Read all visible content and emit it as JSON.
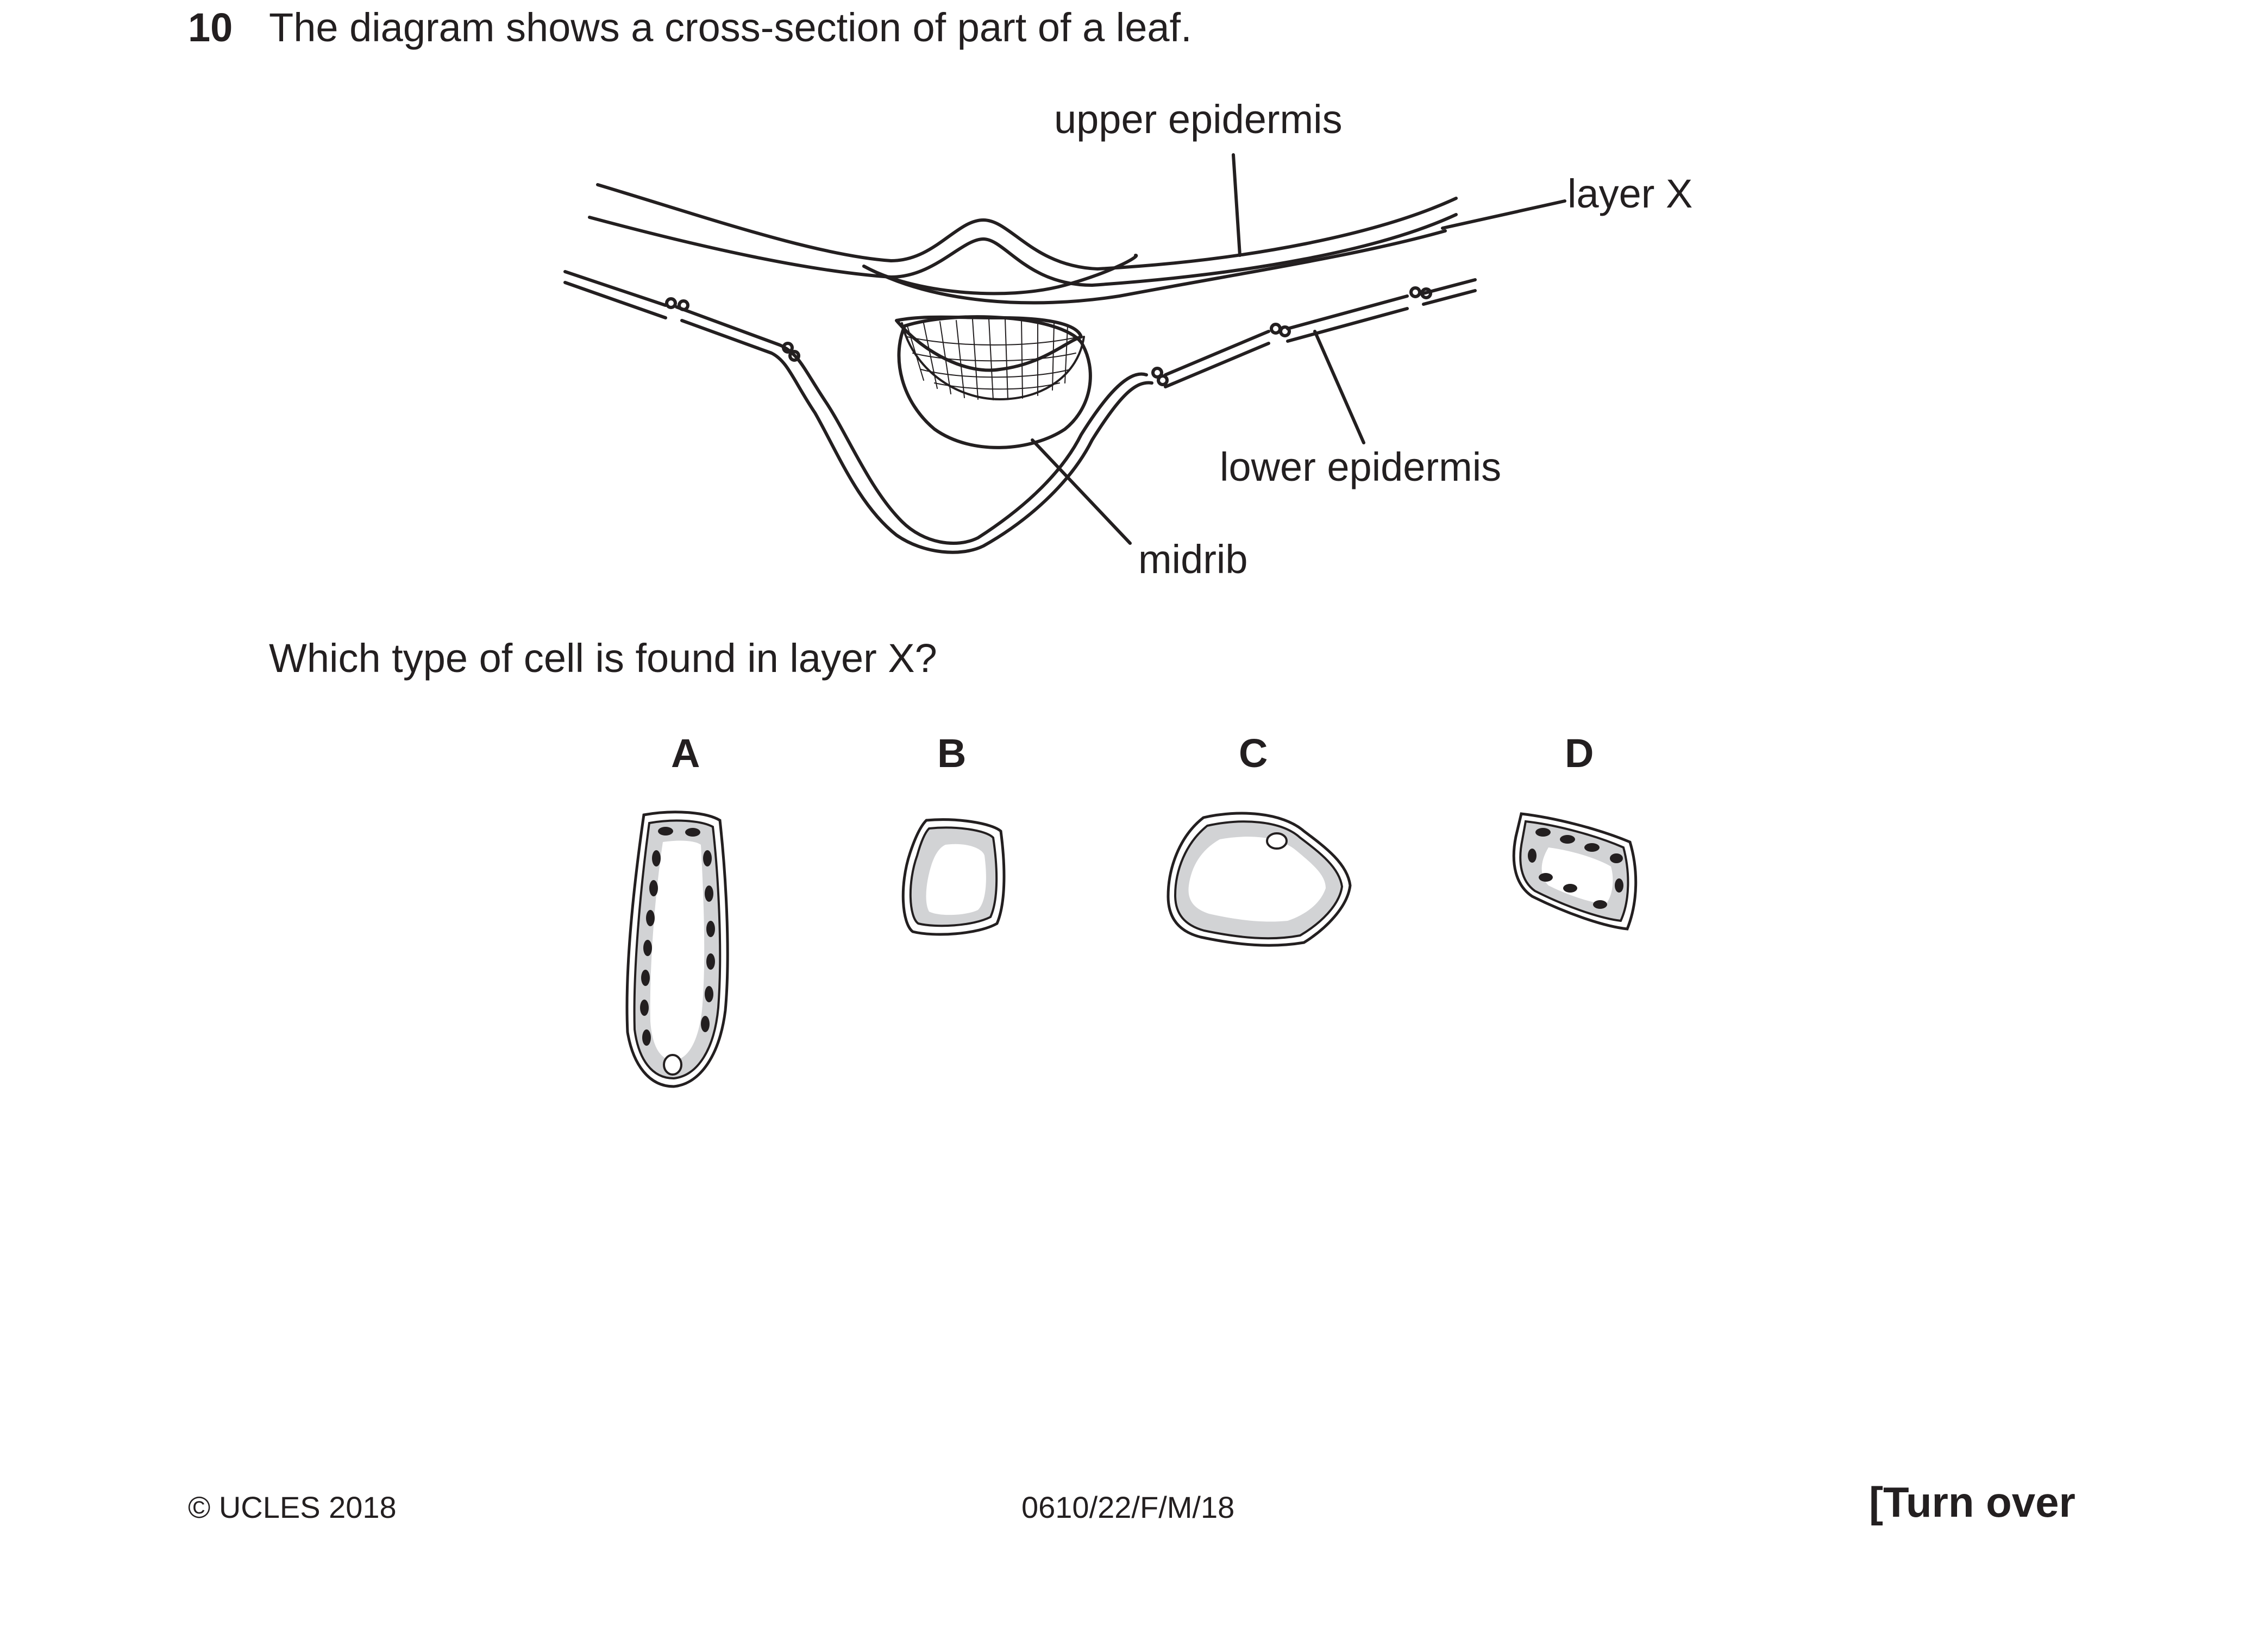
{
  "question": {
    "number": "10",
    "intro": "The diagram shows a cross-section of part of a leaf.",
    "prompt": "Which type of cell is found in layer X?"
  },
  "diagram": {
    "labels": {
      "upper_epidermis": "upper epidermis",
      "layer_x": "layer X",
      "lower_epidermis": "lower epidermis",
      "midrib": "midrib"
    }
  },
  "options": [
    {
      "letter": "A",
      "description": "tall column-shaped cell with many chloroplasts"
    },
    {
      "letter": "B",
      "description": "small rounded cell without chloroplasts"
    },
    {
      "letter": "C",
      "description": "wide irregular cell without chloroplasts"
    },
    {
      "letter": "D",
      "description": "small irregular cell with chloroplasts"
    }
  ],
  "footer": {
    "copyright": "© UCLES 2018",
    "code": "0610/22/F/M/18",
    "turn_over": "[Turn over"
  },
  "colors": {
    "ink": "#231f20",
    "cytoplasm": "#d2d3d5",
    "chloroplast": "#231f20"
  }
}
